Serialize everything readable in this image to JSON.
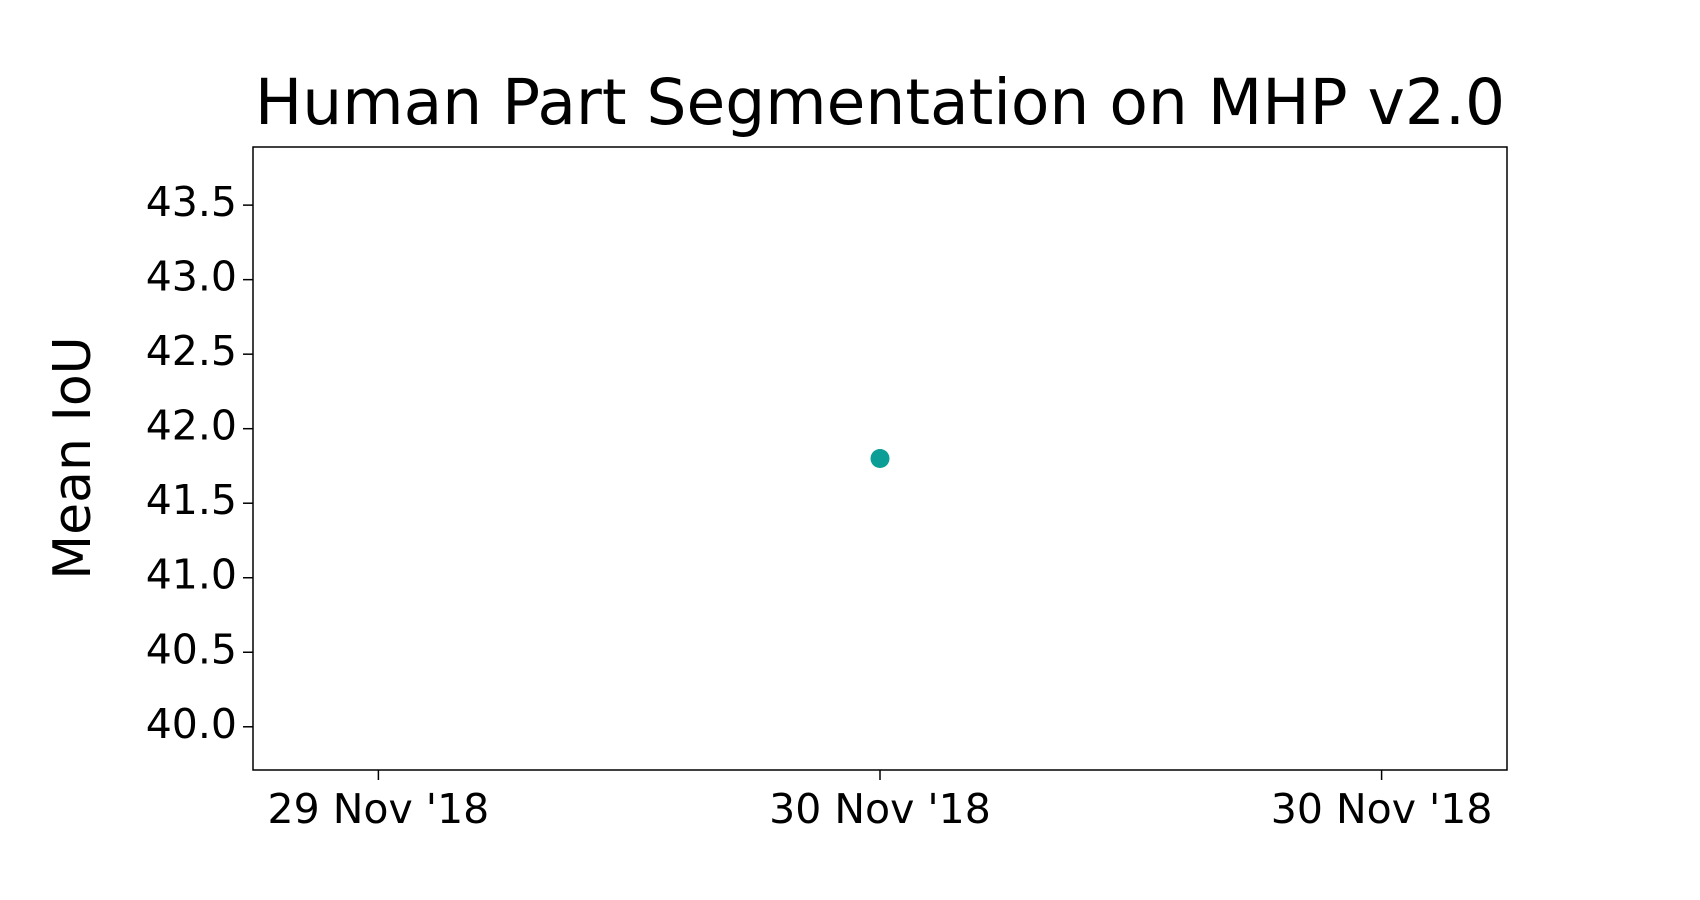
{
  "chart_data": {
    "type": "scatter",
    "title": "Human Part Segmentation on MHP v2.0",
    "y_label": "Mean IoU",
    "x": [
      "2018-11-30T00:00"
    ],
    "series": [
      {
        "color": "#0a9e96",
        "values": [
          41.8
        ]
      }
    ],
    "xlim": [
      "2018-11-29T09:00",
      "2018-11-30T15:00"
    ],
    "xticks": [
      {
        "value": "2018-11-29T12:00",
        "label": "29 Nov '18"
      },
      {
        "value": "2018-11-30T00:00",
        "label": "30 Nov '18"
      },
      {
        "value": "2018-11-30T12:00",
        "label": "30 Nov '18"
      }
    ],
    "ylim": [
      39.71,
      43.89
    ],
    "yticks": [
      {
        "value": 40,
        "label": "40.0"
      },
      {
        "value": 40.5,
        "label": "40.5"
      },
      {
        "value": 41,
        "label": "41.0"
      },
      {
        "value": 41.5,
        "label": "41.5"
      },
      {
        "value": 42,
        "label": "42.0"
      },
      {
        "value": 42.5,
        "label": "42.5"
      },
      {
        "value": 43,
        "label": "43.0"
      },
      {
        "value": 43.5,
        "label": "43.5"
      }
    ]
  }
}
